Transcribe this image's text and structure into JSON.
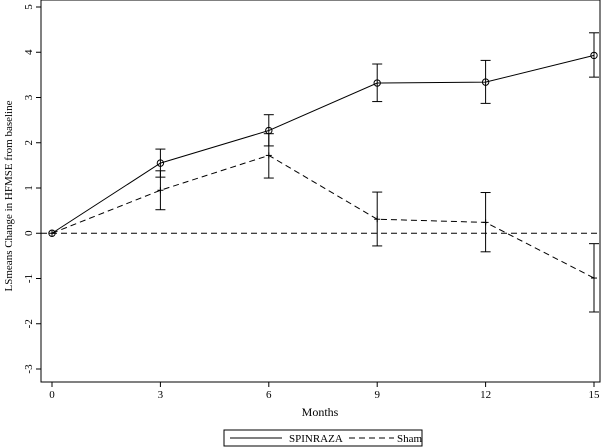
{
  "chart_data": {
    "type": "line",
    "xlabel": "Months",
    "ylabel": "LSmeans Change in HFMSE from baseline",
    "xlim": [
      0,
      15
    ],
    "ylim": [
      -3,
      5
    ],
    "x_ticks": [
      0,
      3,
      6,
      9,
      12,
      15
    ],
    "y_ticks": [
      -3,
      -2,
      -1,
      0,
      1,
      2,
      3,
      4,
      5
    ],
    "reference_line_y": 0,
    "grid": false,
    "legend_position": "bottom-center",
    "series": [
      {
        "name": "SPINRAZA",
        "line_style": "solid",
        "marker": "circle",
        "x": [
          0,
          3,
          6,
          9,
          12,
          15
        ],
        "y": [
          0,
          1.55,
          2.27,
          3.32,
          3.34,
          3.93
        ],
        "err_low": [
          0,
          1.24,
          1.93,
          2.91,
          2.87,
          3.45
        ],
        "err_high": [
          0,
          1.86,
          2.62,
          3.74,
          3.82,
          4.43
        ]
      },
      {
        "name": "Sham",
        "line_style": "dashed",
        "marker": "plus",
        "x": [
          0,
          3,
          6,
          9,
          12,
          15
        ],
        "y": [
          0,
          0.95,
          1.72,
          0.31,
          0.24,
          -0.99
        ],
        "err_low": [
          0,
          0.52,
          1.22,
          -0.28,
          -0.41,
          -1.74
        ],
        "err_high": [
          0,
          1.38,
          2.2,
          0.91,
          0.9,
          -0.23
        ]
      }
    ]
  }
}
